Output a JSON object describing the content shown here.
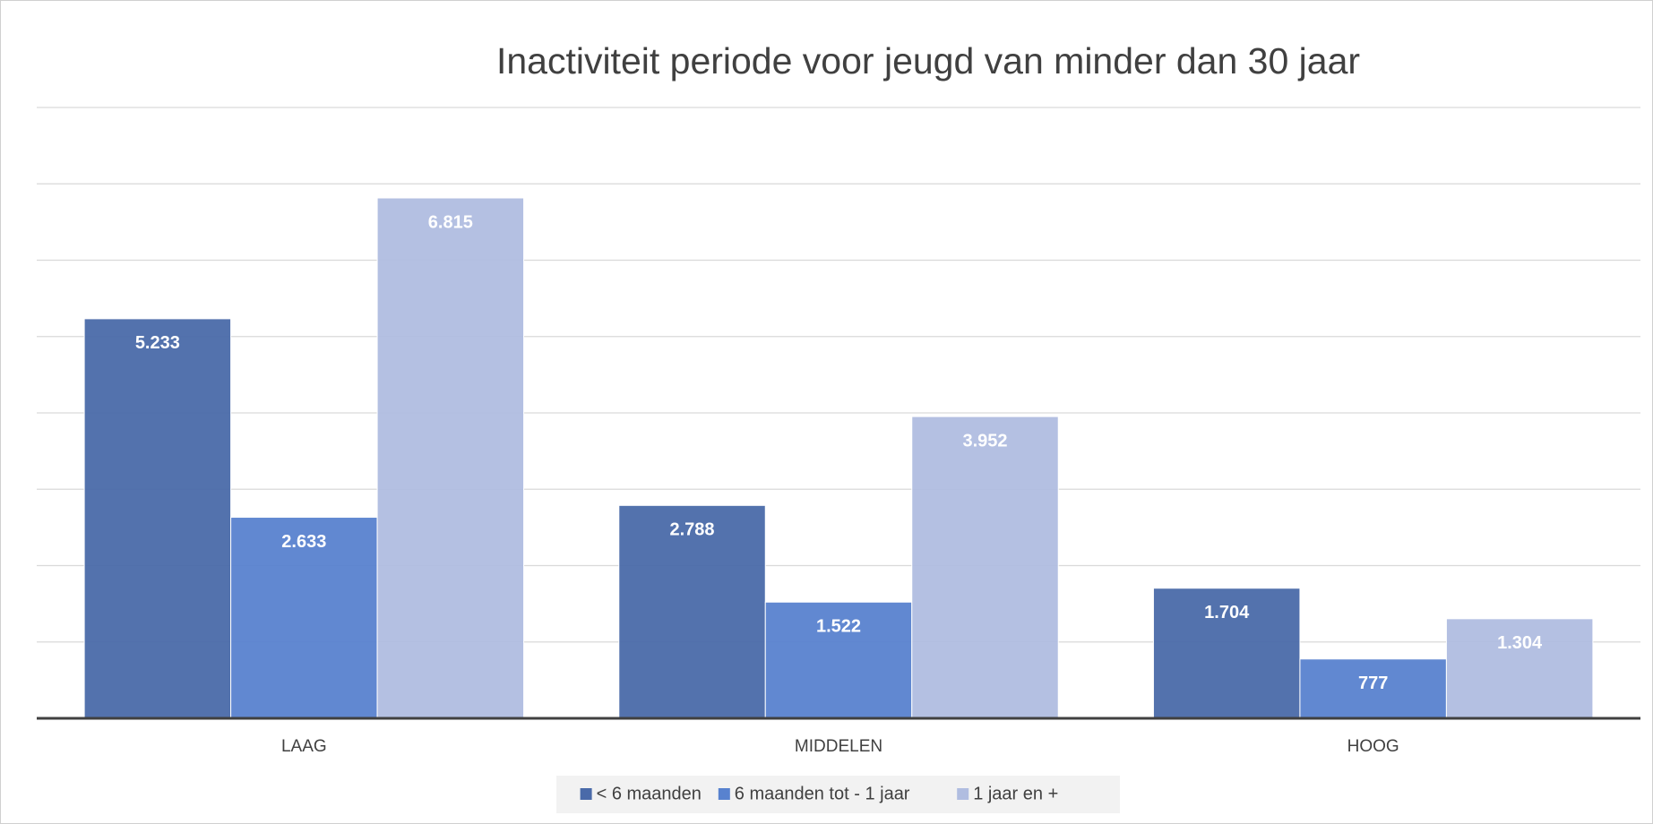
{
  "chart_data": {
    "type": "bar",
    "title": "Inactiviteit periode voor jeugd van minder dan 30 jaar",
    "categories": [
      "LAAG",
      "MIDDELEN",
      "HOOG"
    ],
    "series": [
      {
        "name": "< 6 maanden",
        "color": "#4a6aa9",
        "values": [
          5233,
          2788,
          1704
        ],
        "value_labels": [
          "5.233",
          "2.788",
          "1.704"
        ]
      },
      {
        "name": "6 maanden tot - 1 jaar",
        "color": "#5882cf",
        "values": [
          2633,
          1522,
          777
        ],
        "value_labels": [
          "2.633",
          "1.522",
          "777"
        ]
      },
      {
        "name": "1 jaar en +",
        "color": "#b0bde0",
        "values": [
          6815,
          3952,
          1304
        ],
        "value_labels": [
          "6.815",
          "3.952",
          "1.304"
        ]
      }
    ],
    "ylim": [
      0,
      8000
    ],
    "yticks": [
      0,
      1000,
      2000,
      3000,
      4000,
      5000,
      6000,
      7000,
      8000
    ],
    "grid": true,
    "legend": "bottom"
  }
}
